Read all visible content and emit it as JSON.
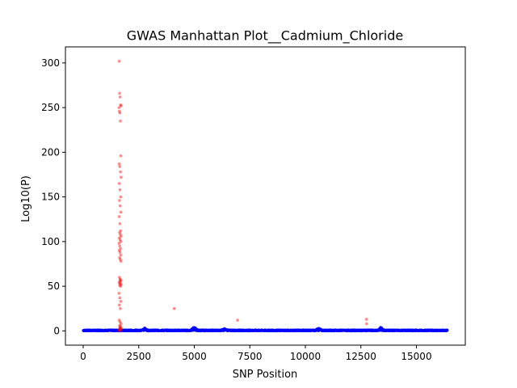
{
  "chart_data": {
    "type": "scatter",
    "title": "GWAS Manhattan Plot__Cadmium_Chloride",
    "xlabel": "SNP Position",
    "ylabel": "Log10(P)",
    "xlim": [
      -800,
      17200
    ],
    "ylim": [
      -16,
      318
    ],
    "xticks": [
      0,
      2500,
      5000,
      7500,
      10000,
      12500,
      15000
    ],
    "xtick_labels": [
      "0",
      "2500",
      "5000",
      "7500",
      "10000",
      "12500",
      "15000"
    ],
    "yticks": [
      0,
      50,
      100,
      150,
      200,
      250,
      300
    ],
    "ytick_labels": [
      "0",
      "50",
      "100",
      "150",
      "200",
      "250",
      "300"
    ],
    "grid": false,
    "legend": "none",
    "colors": {
      "baseline": "#0000ff",
      "significant": "#ff0000"
    },
    "baseline_range": [
      0,
      16400
    ],
    "series": [
      {
        "color": "#ff0000",
        "x": [
          1620,
          1640,
          1660,
          1680,
          1700,
          1610,
          1630,
          1650,
          1670,
          1690,
          1615,
          1645,
          1675,
          1705,
          1625,
          1655,
          1685,
          1635,
          1665,
          1695,
          1620,
          1650,
          1680,
          1640,
          1670,
          1700,
          1630,
          1660,
          1690,
          1610,
          1645,
          1675,
          1620,
          1655,
          1685,
          1640,
          1670,
          1700,
          1630,
          1660,
          1690,
          1650,
          1680,
          1620,
          1660,
          1700,
          1640,
          1680,
          1610,
          1650,
          1690,
          1630,
          1670,
          1620,
          1660,
          1700,
          1640,
          1680,
          1650,
          1690,
          1630,
          1670,
          1620,
          1660,
          1700,
          1640,
          4100,
          6950,
          12750,
          12760
        ],
        "y": [
          302,
          266,
          262,
          253,
          252,
          250,
          246,
          244,
          235,
          196,
          187,
          184,
          178,
          172,
          165,
          158,
          150,
          146,
          140,
          133,
          128,
          120,
          112,
          110,
          108,
          106,
          104,
          102,
          100,
          98,
          95,
          92,
          90,
          88,
          85,
          82,
          80,
          78,
          60,
          58,
          57,
          56,
          55,
          54,
          53,
          52,
          51,
          50,
          42,
          37,
          33,
          29,
          25,
          12,
          10,
          8,
          6,
          5,
          4,
          3,
          2,
          1,
          0,
          3,
          2,
          1,
          25,
          12,
          13,
          8
        ]
      }
    ]
  }
}
